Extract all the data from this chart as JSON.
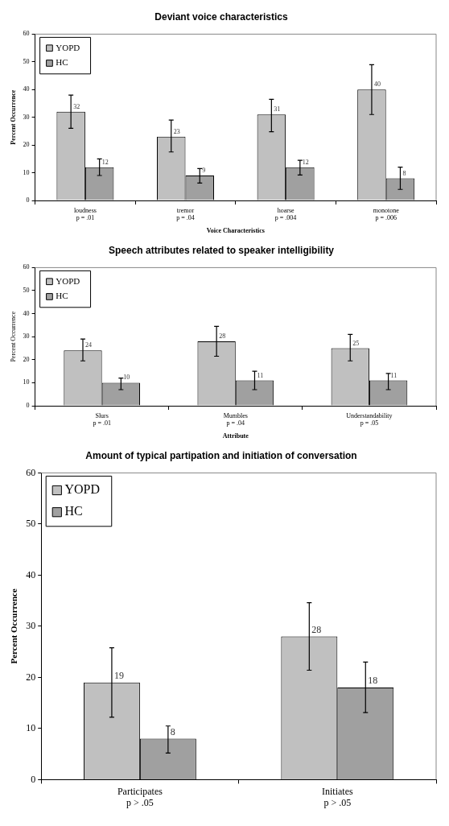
{
  "chart_data": [
    {
      "type": "bar",
      "title": "Deviant voice characteristics",
      "xlabel": "Voice Characteristics",
      "ylabel": "Percent Occurrence",
      "categories": [
        "loudness",
        "tremor",
        "hoarse",
        "monotone"
      ],
      "series": [
        {
          "name": "YOPD",
          "color": "#c0c0c0",
          "values": [
            32,
            23,
            31,
            40
          ],
          "errors": [
            [
              26,
              38
            ],
            [
              17.5,
              29
            ],
            [
              24.8,
              36.5
            ],
            [
              31,
              49
            ]
          ]
        },
        {
          "name": "HC",
          "color": "#a0a0a0",
          "values": [
            12,
            9,
            12,
            8
          ],
          "errors": [
            [
              9,
              15
            ],
            [
              6.3,
              11.5
            ],
            [
              9.2,
              14.5
            ],
            [
              4,
              12
            ]
          ]
        }
      ],
      "ylim": [
        0,
        60
      ],
      "yticks": [
        0,
        10,
        20,
        30,
        40,
        50,
        60
      ],
      "legend": "top left",
      "data_labels": true,
      "annotations": [
        "p = .01",
        "p = .04",
        "p = .004",
        "p = .006"
      ]
    },
    {
      "type": "bar",
      "title": "Speech attributes related to speaker intelligibility",
      "xlabel": "Attribute",
      "ylabel": "Percent Occurrence",
      "categories": [
        "Slurs",
        "Mumbles",
        "Understandability"
      ],
      "series": [
        {
          "name": "YOPD",
          "color": "#c0c0c0",
          "values": [
            24,
            28,
            25
          ],
          "errors": [
            [
              19.5,
              29
            ],
            [
              21.5,
              34.5
            ],
            [
              19.5,
              31
            ]
          ]
        },
        {
          "name": "HC",
          "color": "#a0a0a0",
          "values": [
            10,
            11,
            11
          ],
          "errors": [
            [
              7,
              12
            ],
            [
              7,
              15
            ],
            [
              7,
              14
            ]
          ]
        }
      ],
      "ylim": [
        0,
        60
      ],
      "yticks": [
        0,
        10,
        20,
        30,
        40,
        50,
        60
      ],
      "legend": "top left",
      "data_labels": true,
      "annotations": [
        "p = .01",
        "p = .04",
        "p = .05"
      ]
    },
    {
      "type": "bar",
      "title": "Amount of typical partipation and initiation of conversation",
      "ylabel": "Percent Occurrence",
      "categories": [
        "Participates",
        "Initiates"
      ],
      "series": [
        {
          "name": "YOPD",
          "color": "#c0c0c0",
          "values": [
            19,
            28
          ],
          "errors": [
            [
              12.2,
              25.8
            ],
            [
              21.4,
              34.6
            ]
          ]
        },
        {
          "name": "HC",
          "color": "#a0a0a0",
          "values": [
            8,
            18
          ],
          "errors": [
            [
              5.2,
              10.5
            ],
            [
              13.1,
              23
            ]
          ]
        }
      ],
      "ylim": [
        0,
        60
      ],
      "yticks": [
        0,
        10,
        20,
        30,
        40,
        50,
        60
      ],
      "legend": "top left",
      "data_labels": true,
      "annotations": [
        "p > .05",
        "p > .05"
      ]
    }
  ]
}
